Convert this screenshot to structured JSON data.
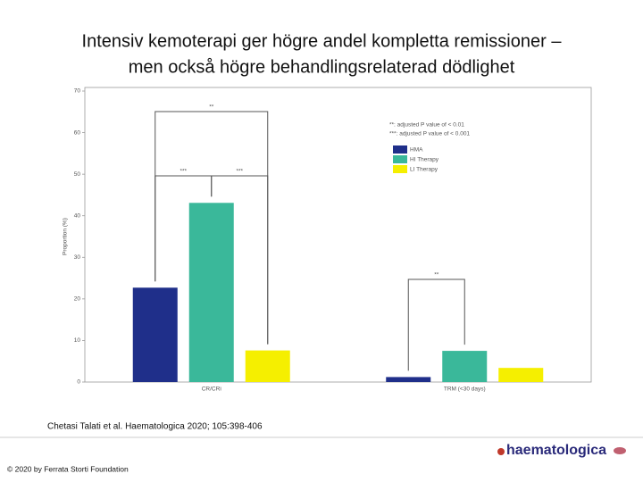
{
  "title": "Intensiv kemoterapi ger högre andel kompletta remissioner – men också högre behandlingsrelaterad dödlighet",
  "citation": "Chetasi Talati et al. Haematologica 2020; 105:398-406",
  "footer": "© 2020 by Ferrata Storti Foundation",
  "logo": "haematologica",
  "chart_data": {
    "type": "bar",
    "categories": [
      "CR/CRi",
      "TRM (<30 days)"
    ],
    "series": [
      {
        "name": "HMA",
        "color": "#1f2f8a",
        "values": [
          22.7,
          1.2
        ]
      },
      {
        "name": "HI Therapy",
        "color": "#3ab89a",
        "values": [
          43.1,
          7.5
        ]
      },
      {
        "name": "LI Therapy",
        "color": "#f5ef00",
        "values": [
          7.6,
          3.4
        ]
      }
    ],
    "ylabel": "Proportion (%)",
    "ylim": [
      0,
      70
    ],
    "yticks": [
      0,
      10,
      20,
      30,
      40,
      50,
      60,
      70
    ],
    "notes": [
      "**: adjusted P value of < 0.01",
      "***: adjusted P value of < 0.001"
    ],
    "annotations": [
      "**",
      "***",
      "***",
      "**"
    ]
  }
}
